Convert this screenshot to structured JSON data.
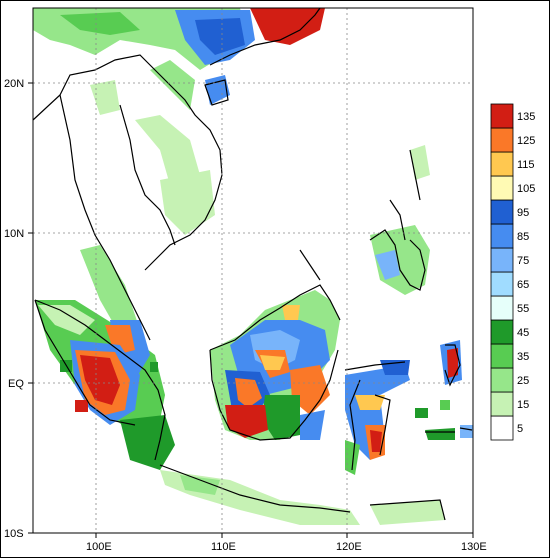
{
  "map": {
    "x_ticks": [
      "100E",
      "110E",
      "120E",
      "130E"
    ],
    "y_ticks": [
      "20N",
      "10N",
      "EQ",
      "10S"
    ],
    "lon_range": [
      95,
      130
    ],
    "lat_range": [
      -10,
      25
    ]
  },
  "legend": {
    "labels": [
      "5",
      "15",
      "25",
      "35",
      "45",
      "55",
      "65",
      "75",
      "85",
      "95",
      "105",
      "115",
      "125",
      "135"
    ],
    "colors": [
      "#ffffff",
      "#c6f2b4",
      "#96e68a",
      "#58cc52",
      "#1f9a2a",
      "#e6fffa",
      "#a0dcff",
      "#78b4fa",
      "#468cf0",
      "#2060d2",
      "#fffab4",
      "#ffc850",
      "#fa7828",
      "#d21e14"
    ]
  }
}
